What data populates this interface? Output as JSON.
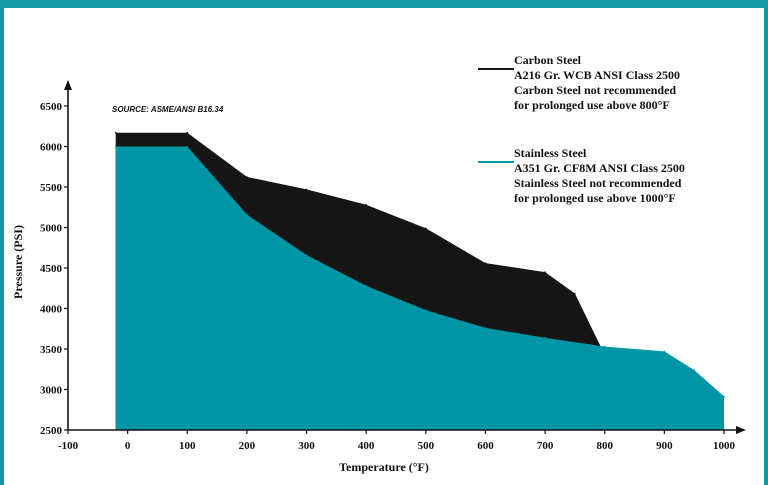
{
  "chart_data": {
    "type": "area",
    "source_note": "SOURCE: ASME/ANSI B16.34",
    "xlabel": "Temperature (°F)",
    "ylabel": "Pressure (PSI)",
    "xlim": [
      -100,
      1000
    ],
    "ylim": [
      2500,
      6500
    ],
    "x_ticks": [
      -100,
      0,
      100,
      200,
      300,
      400,
      500,
      600,
      700,
      800,
      900,
      1000
    ],
    "y_ticks": [
      2500,
      3000,
      3500,
      4000,
      4500,
      5000,
      5500,
      6000,
      6500
    ],
    "series": [
      {
        "name": "Carbon Steel",
        "color": "#151515",
        "legend": [
          "Carbon Steel",
          "A216 Gr. WCB ANSI Class 2500",
          "Carbon Steel not recommended",
          "for prolonged use above 800°F"
        ],
        "x": [
          -20,
          100,
          200,
          300,
          400,
          500,
          600,
          700,
          750,
          800
        ],
        "y": [
          6170,
          6170,
          5625,
          5470,
          5280,
          4990,
          4560,
          4450,
          4185,
          3430
        ]
      },
      {
        "name": "Stainless Steel",
        "color": "#0096a6",
        "legend": [
          "Stainless Steel",
          "A351 Gr. CF8M ANSI Class 2500",
          "Stainless Steel not recommended",
          "for prolonged use above 1000°F"
        ],
        "x": [
          -20,
          100,
          200,
          300,
          400,
          500,
          600,
          700,
          800,
          900,
          950,
          1000
        ],
        "y": [
          6000,
          6000,
          5160,
          4660,
          4280,
          3980,
          3760,
          3640,
          3530,
          3470,
          3240,
          2915
        ]
      }
    ]
  }
}
